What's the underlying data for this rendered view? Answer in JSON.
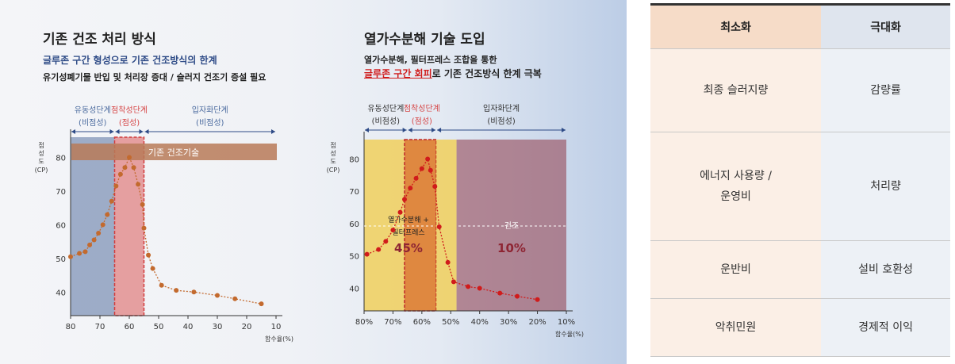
{
  "left_panel": {
    "title": "기존 건조 처리 방식",
    "subtitle1": "글루존 구간 형성으로 기존 건조방식의 한계",
    "subtitle2": "유기성폐기물 반입 및 처리장 증대 / 슬러지 건조기 증설 필요",
    "bar_label": "기존 건조기술"
  },
  "mid_panel": {
    "title": "열가수분해 기술 도입",
    "subtitle1": "열가수분해, 필터프레스 조합을 통한",
    "subtitle2_highlight": "글루존 구간 회피",
    "subtitle2_rest": "로 기존 건조방식 한계 극복",
    "zone_label_1a": "열가수분해 +",
    "zone_label_1b": "필터프레스",
    "zone_pct_1": "45%",
    "zone_label_2": "건조",
    "zone_pct_2": "10%"
  },
  "chart_data": [
    {
      "type": "line",
      "title": "기존 건조 처리 방식",
      "xlabel": "함수율(%)",
      "ylabel": "점성도 (CP)",
      "xlim": [
        80,
        10
      ],
      "ylim": [
        33,
        86
      ],
      "x_ticks": [
        "80",
        "70",
        "60",
        "50",
        "40",
        "30",
        "20",
        "10"
      ],
      "y_ticks": [
        "40",
        "50",
        "60",
        "70",
        "80"
      ],
      "x": [
        80,
        77,
        75,
        73.5,
        72,
        70.5,
        69,
        67.5,
        66,
        64.5,
        63,
        61.5,
        60,
        58.5,
        57,
        55.5,
        55,
        53.5,
        52,
        49,
        44,
        38,
        30,
        24,
        15
      ],
      "y": [
        50.5,
        51.5,
        52,
        54,
        55.5,
        57.5,
        60,
        63,
        67,
        71.5,
        75,
        77,
        80,
        77,
        72,
        66,
        59,
        51,
        47,
        42,
        40.5,
        40,
        39,
        38,
        36.5
      ],
      "phases": [
        {
          "name": "유동성단계",
          "sub": "(비점성)",
          "x_range": [
            80,
            65
          ],
          "color": "#4a6a9e"
        },
        {
          "name": "점착성단계",
          "sub": "(점성)",
          "x_range": [
            65,
            55
          ],
          "color": "#d64545"
        },
        {
          "name": "입자화단계",
          "sub": "(비점성)",
          "x_range": [
            55,
            10
          ],
          "color": "#4a6a9e"
        }
      ]
    },
    {
      "type": "line",
      "title": "열가수분해 기술 도입",
      "xlabel": "함수율(%)",
      "ylabel": "점성도 (CP)",
      "xlim": [
        80,
        10
      ],
      "ylim": [
        33,
        86
      ],
      "x_ticks": [
        "80%",
        "70%",
        "60%",
        "50%",
        "40%",
        "30%",
        "20%",
        "10%"
      ],
      "y_ticks": [
        "40",
        "50",
        "60",
        "70",
        "80"
      ],
      "x": [
        79,
        75,
        72.5,
        70,
        67.5,
        66,
        64,
        62,
        60,
        58,
        57,
        55.5,
        54,
        51,
        49,
        44,
        40,
        33,
        27,
        20
      ],
      "y": [
        50.5,
        52,
        54.5,
        58,
        63.5,
        67.5,
        71,
        74,
        77,
        80,
        76.5,
        71.5,
        59,
        48,
        42,
        40.5,
        40,
        38.5,
        37.5,
        36.5
      ],
      "phases": [
        {
          "name": "유동성단계",
          "sub": "(비점성)",
          "x_range": [
            80,
            65
          ],
          "color": "#333333"
        },
        {
          "name": "점착성단계",
          "sub": "(점성)",
          "x_range": [
            65,
            55
          ],
          "color": "#d64545"
        },
        {
          "name": "입자화단계",
          "sub": "(비점성)",
          "x_range": [
            55,
            10
          ],
          "color": "#333333"
        }
      ]
    }
  ],
  "table": {
    "headers": [
      "최소화",
      "극대화"
    ],
    "rows": [
      {
        "min_a": "최종 슬러지량",
        "min_b": "",
        "max": "감량률"
      },
      {
        "min_a": "에너지 사용량 /",
        "min_b": "운영비",
        "max": "처리량"
      },
      {
        "min_a": "운반비",
        "min_b": "",
        "max": "설비 호환성"
      },
      {
        "min_a": "악취민원",
        "min_b": "",
        "max": "경제적 이익"
      }
    ]
  }
}
